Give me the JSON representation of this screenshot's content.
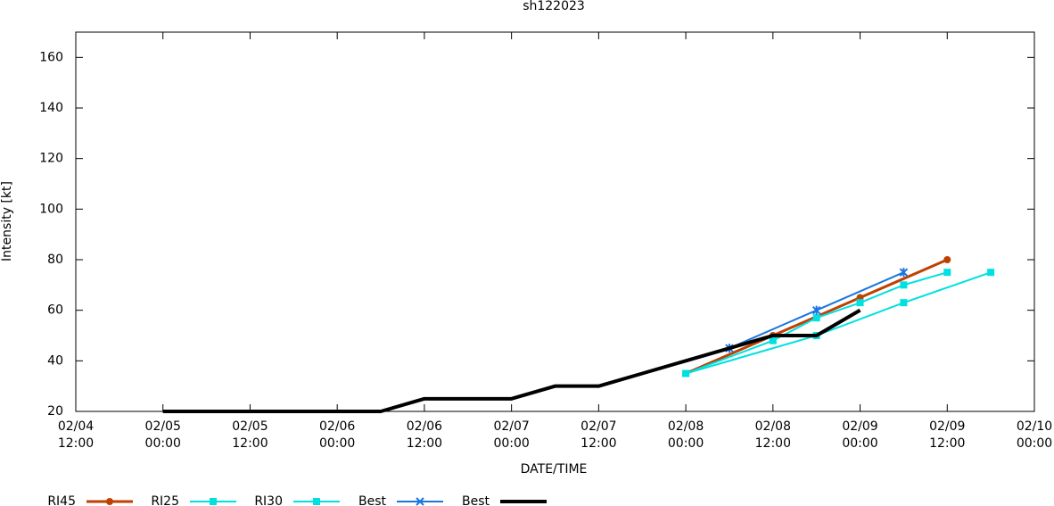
{
  "chart_data": {
    "type": "line",
    "title": "sh122023",
    "x_label": "DATE/TIME",
    "y_label": "Intensity [kt]",
    "xlim": [
      "02/04 12:00",
      "02/10 00:00"
    ],
    "xticks": [
      "02/04 12:00",
      "02/05 00:00",
      "02/05 12:00",
      "02/06 00:00",
      "02/06 12:00",
      "02/07 00:00",
      "02/07 12:00",
      "02/08 00:00",
      "02/08 12:00",
      "02/09 00:00",
      "02/09 12:00",
      "02/10 00:00"
    ],
    "ylim": [
      20,
      170
    ],
    "yticks": [
      20,
      40,
      60,
      80,
      100,
      120,
      140,
      160
    ],
    "series": [
      {
        "name": "RI45",
        "color": "#c04000",
        "marker": "circle",
        "line_width": 3,
        "x": [
          "02/08 00:00",
          "02/08 12:00",
          "02/09 00:00",
          "02/09 12:00"
        ],
        "values": [
          35,
          50,
          65,
          80
        ]
      },
      {
        "name": "RI25",
        "color": "#00e0e0",
        "marker": "square",
        "line_width": 2,
        "x": [
          "02/08 00:00",
          "02/08 12:00",
          "02/08 18:00",
          "02/09 00:00",
          "02/09 06:00",
          "02/09 12:00"
        ],
        "values": [
          35,
          48,
          57,
          63,
          70,
          75
        ]
      },
      {
        "name": "RI30",
        "color": "#00e0e0",
        "marker": "square",
        "line_width": 2,
        "x": [
          "02/08 00:00",
          "02/08 18:00",
          "02/09 06:00",
          "02/09 18:00"
        ],
        "values": [
          35,
          50,
          63,
          75
        ]
      },
      {
        "name": "Best",
        "color": "#1a75e0",
        "marker": "cross",
        "line_width": 2,
        "x": [
          "02/08 06:00",
          "02/08 18:00",
          "02/09 06:00"
        ],
        "values": [
          45,
          60,
          75
        ]
      },
      {
        "name": "Best",
        "color": "#000000",
        "marker": "none",
        "line_width": 4,
        "x": [
          "02/05 00:00",
          "02/05 06:00",
          "02/05 12:00",
          "02/05 18:00",
          "02/06 00:00",
          "02/06 06:00",
          "02/06 12:00",
          "02/06 18:00",
          "02/07 00:00",
          "02/07 06:00",
          "02/07 12:00",
          "02/07 18:00",
          "02/08 00:00",
          "02/08 06:00",
          "02/08 12:00",
          "02/08 18:00",
          "02/09 00:00"
        ],
        "values": [
          20,
          20,
          20,
          20,
          20,
          20,
          25,
          25,
          25,
          30,
          30,
          35,
          40,
          45,
          50,
          50,
          60
        ]
      }
    ]
  }
}
